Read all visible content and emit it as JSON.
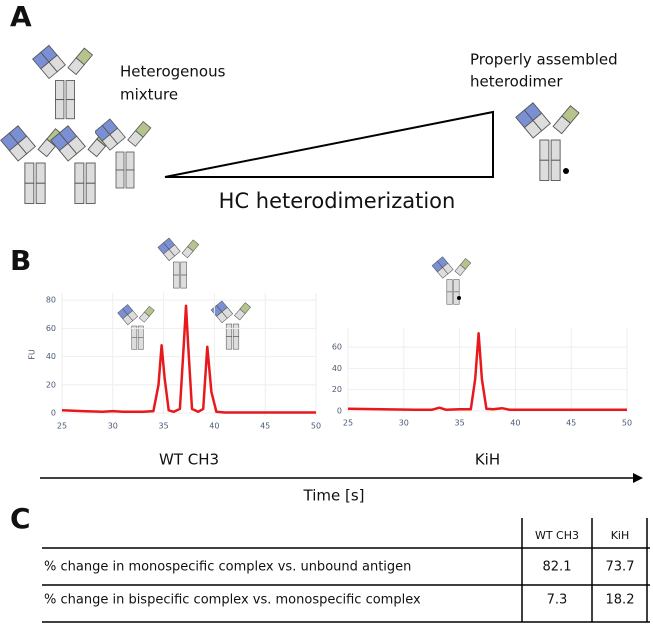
{
  "panel_a": {
    "label": "A",
    "mixture": [
      "Heterogenous",
      "mixture"
    ],
    "product": [
      "Properly assembled",
      "heterodimer"
    ],
    "gradient": "HC heterodimerization"
  },
  "panel_b": {
    "label": "B",
    "time_axis": "Time [s]"
  },
  "chart_data": [
    {
      "type": "line",
      "xlabel": "WT CH3",
      "ylabel": "FU",
      "color": "#e8191c",
      "x": [
        25,
        27,
        29,
        30,
        31,
        33,
        34,
        34.5,
        34.8,
        35.1,
        35.5,
        36,
        36.6,
        37,
        37.2,
        37.4,
        37.8,
        38.4,
        38.9,
        39.3,
        39.7,
        40.2,
        41,
        43,
        45,
        47,
        50
      ],
      "values": [
        2,
        1.5,
        1,
        1.5,
        1,
        1,
        1.5,
        20,
        48,
        25,
        2,
        1,
        3,
        50,
        76,
        50,
        3,
        1,
        3,
        47,
        15,
        1,
        0.5,
        0.5,
        0.5,
        0.5,
        0.5
      ],
      "xlim": [
        25,
        50
      ],
      "xticks": [
        25,
        30,
        35,
        40,
        45,
        50
      ],
      "ylim": [
        -2,
        85
      ],
      "yticks": [
        0,
        20,
        40,
        60,
        80
      ]
    },
    {
      "type": "line",
      "xlabel": "KiH",
      "color": "#e8191c",
      "x": [
        25,
        28,
        31,
        32.5,
        33.2,
        33.8,
        35,
        36,
        36.4,
        36.7,
        37,
        37.4,
        38,
        38.8,
        39.5,
        42,
        46,
        50
      ],
      "values": [
        2,
        1.5,
        1,
        1,
        3,
        1,
        1.5,
        1.5,
        30,
        73,
        30,
        2,
        1.5,
        2.5,
        1,
        1,
        1,
        1
      ],
      "xlim": [
        25,
        50
      ],
      "xticks": [
        25,
        30,
        35,
        40,
        45,
        50
      ],
      "ylim": [
        -2,
        78
      ],
      "yticks": [
        0,
        20,
        40,
        60
      ]
    }
  ],
  "panel_c": {
    "label": "C",
    "header": [
      "WT CH3",
      "KiH"
    ],
    "rows": [
      [
        "% change in monospecific complex vs. unbound antigen",
        82.1,
        73.7
      ],
      [
        "% change in bispecific complex vs. monospecific complex",
        7.3,
        18.2
      ]
    ]
  }
}
